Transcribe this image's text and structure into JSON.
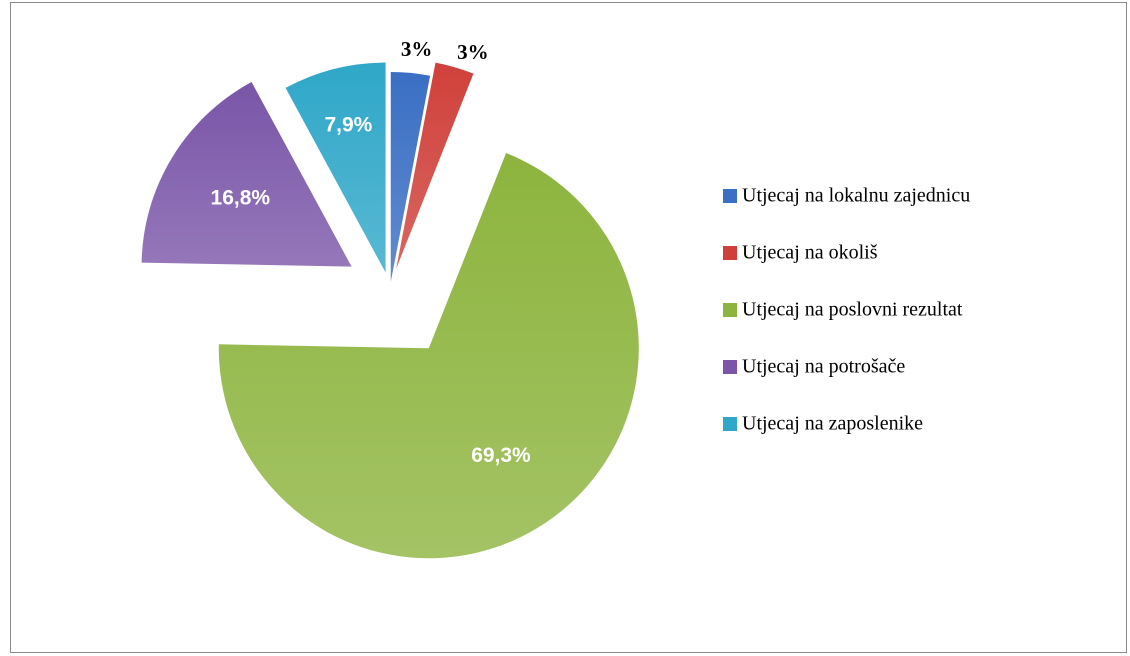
{
  "chart_data": {
    "type": "pie",
    "categories": [
      "Utjecaj na lokalnu zajednicu",
      "Utjecaj na okoliš",
      "Utjecaj na poslovni rezultat",
      "Utjecaj na potrošače",
      "Utjecaj na zaposlenike"
    ],
    "values": [
      3,
      3,
      69.3,
      16.8,
      7.9
    ],
    "value_labels": [
      "3%",
      "3%",
      "69,3%",
      "16,8%",
      "7,9%"
    ],
    "colors": [
      "#3a6fc4",
      "#d0403a",
      "#8db43e",
      "#7a55a8",
      "#2fa7c8"
    ],
    "legend": "right"
  }
}
